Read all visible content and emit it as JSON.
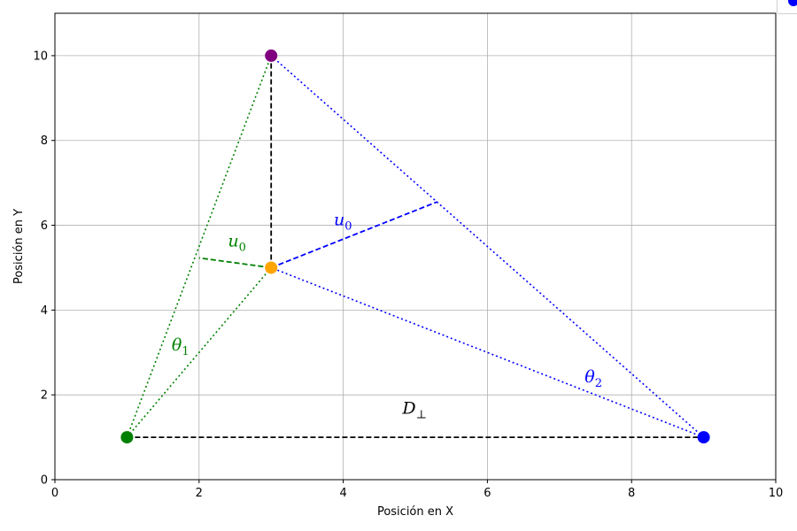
{
  "chart_data": {
    "type": "scatter",
    "xlabel": "Posición en X",
    "ylabel": "Posición en Y",
    "xlim": [
      0,
      10
    ],
    "ylim": [
      0,
      11
    ],
    "x_ticks": [
      0,
      2,
      4,
      6,
      8,
      10
    ],
    "y_ticks": [
      0,
      2,
      4,
      6,
      8,
      10
    ],
    "grid": true,
    "legend": "top-right",
    "points": [
      {
        "x": 1,
        "y": 1,
        "color": "#008000"
      },
      {
        "x": 9,
        "y": 1,
        "color": "#0000ff"
      },
      {
        "x": 3,
        "y": 10,
        "color": "#800080"
      },
      {
        "x": 3,
        "y": 5,
        "color": "#ffa500"
      }
    ],
    "lines": [
      {
        "from": [
          1,
          1
        ],
        "to": [
          9,
          1
        ],
        "style": "dashed",
        "color": "#000000"
      },
      {
        "from": [
          3,
          5
        ],
        "to": [
          3,
          10
        ],
        "style": "dashed",
        "color": "#000000"
      },
      {
        "from": [
          1,
          1
        ],
        "to": [
          3,
          10
        ],
        "style": "dotted",
        "color": "#008000"
      },
      {
        "from": [
          1,
          1
        ],
        "to": [
          3,
          5
        ],
        "style": "dotted",
        "color": "#008000"
      },
      {
        "from": [
          9,
          1
        ],
        "to": [
          3,
          10
        ],
        "style": "dotted",
        "color": "#0000ff"
      },
      {
        "from": [
          9,
          1
        ],
        "to": [
          3,
          5
        ],
        "style": "dotted",
        "color": "#0000ff"
      },
      {
        "from": [
          3,
          5
        ],
        "to": [
          2.0,
          5.23
        ],
        "style": "dashed",
        "color": "#008000"
      },
      {
        "from": [
          3,
          5
        ],
        "to": [
          5.3,
          6.55
        ],
        "style": "dashed",
        "color": "#0000ff"
      }
    ],
    "annotations": [
      {
        "text": "u",
        "sub": "0",
        "x": 2.4,
        "y": 5.5,
        "color": "#008000"
      },
      {
        "text": "u",
        "sub": "0",
        "x": 3.87,
        "y": 6.0,
        "color": "#0000ff"
      },
      {
        "text": "θ",
        "sub": "1",
        "x": 1.62,
        "y": 3.05,
        "color": "#008000"
      },
      {
        "text": "θ",
        "sub": "2",
        "x": 7.35,
        "y": 2.3,
        "color": "#0000ff"
      },
      {
        "text": "D",
        "sub": "⊥",
        "x": 4.82,
        "y": 1.55,
        "color": "#000000"
      }
    ]
  }
}
